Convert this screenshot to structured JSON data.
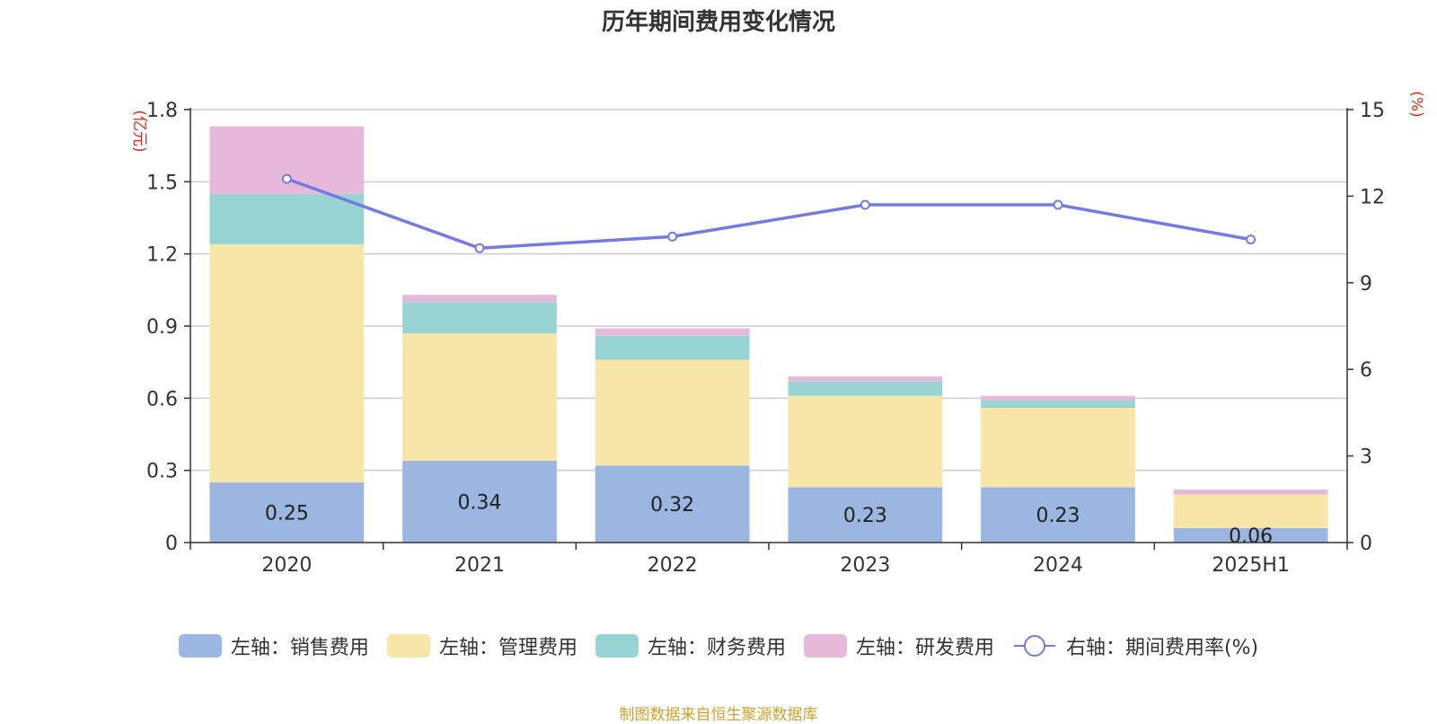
{
  "chart_data": {
    "type": "bar",
    "title": "历年期间费用变化情况",
    "categories": [
      "2020",
      "2021",
      "2022",
      "2023",
      "2024",
      "2025H1"
    ],
    "left_axis": {
      "unit_label": "(亿元)",
      "ylim": [
        0,
        1.8
      ],
      "ticks": [
        "0",
        "0.3",
        "0.6",
        "0.9",
        "1.2",
        "1.5",
        "1.8"
      ]
    },
    "right_axis": {
      "unit_label": "(%)",
      "ylim": [
        0,
        15
      ],
      "ticks": [
        "0",
        "3",
        "6",
        "9",
        "12",
        "15"
      ]
    },
    "series": [
      {
        "name": "左轴：销售费用",
        "stack": true,
        "color": "#9bb6e0",
        "values": [
          0.25,
          0.34,
          0.32,
          0.23,
          0.23,
          0.06
        ],
        "labels": [
          "0.25",
          "0.34",
          "0.32",
          "0.23",
          "0.23",
          "0.06"
        ]
      },
      {
        "name": "左轴：管理费用",
        "stack": true,
        "color": "#f7e6a8",
        "values": [
          0.99,
          0.53,
          0.44,
          0.38,
          0.33,
          0.14
        ]
      },
      {
        "name": "左轴：财务费用",
        "stack": true,
        "color": "#98d4d4",
        "values": [
          0.21,
          0.13,
          0.1,
          0.06,
          0.03,
          0.0
        ]
      },
      {
        "name": "左轴：研发费用",
        "stack": true,
        "color": "#e6b9da",
        "values": [
          0.28,
          0.03,
          0.03,
          0.02,
          0.02,
          0.02
        ]
      },
      {
        "name": "右轴：期间费用率(%)",
        "type": "line",
        "axis": "right",
        "color": "#7479e6",
        "values": [
          12.6,
          10.2,
          10.6,
          11.7,
          11.7,
          10.5
        ]
      }
    ],
    "grid": true,
    "legend_position": "bottom",
    "source": "制图数据来自恒生聚源数据库"
  }
}
